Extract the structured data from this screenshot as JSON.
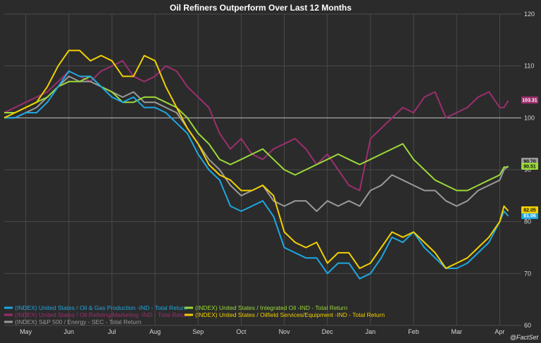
{
  "chart_data": {
    "type": "line",
    "title": "Oil Refiners Outperform Over Last 12 Months",
    "source": "@FactSet",
    "ylim": [
      60,
      120
    ],
    "y_ticks": [
      60,
      70,
      80,
      90,
      100,
      110,
      120
    ],
    "x_ticks": [
      "May",
      "Jun",
      "Jul",
      "Aug",
      "Sep",
      "Oct",
      "Nov",
      "Dec",
      "Jan",
      "Feb",
      "Mar",
      "Apr"
    ],
    "x_positions": [
      0.5,
      1.5,
      2.5,
      3.5,
      4.5,
      5.5,
      6.5,
      7.5,
      8.5,
      9.5,
      10.5,
      11.5
    ],
    "xlim": [
      0,
      12
    ],
    "reference_line": 100,
    "grid": true,
    "legend_position": "bottom-left",
    "series": [
      {
        "name": "(INDEX) United States / Oil & Gas Production -IND - Total Return",
        "color": "#1ea7e1",
        "end_label": "81.06",
        "x": [
          0,
          0.25,
          0.5,
          0.75,
          1.0,
          1.25,
          1.5,
          1.75,
          2.0,
          2.25,
          2.5,
          2.75,
          3.0,
          3.25,
          3.5,
          3.75,
          4.0,
          4.25,
          4.5,
          4.75,
          5.0,
          5.25,
          5.5,
          5.75,
          6.0,
          6.25,
          6.5,
          6.75,
          7.0,
          7.25,
          7.5,
          7.75,
          8.0,
          8.25,
          8.5,
          8.75,
          9.0,
          9.25,
          9.5,
          9.75,
          10.0,
          10.25,
          10.5,
          10.75,
          11.0,
          11.25,
          11.5,
          11.6,
          11.7
        ],
        "values": [
          100,
          100,
          101,
          101,
          103,
          106,
          109,
          108,
          108,
          106,
          104,
          103,
          104,
          102,
          102,
          101,
          99,
          97,
          93,
          90,
          88,
          83,
          82,
          83,
          84,
          81,
          75,
          74,
          73,
          73,
          70,
          72,
          72,
          69,
          70,
          73,
          77,
          76,
          78,
          75,
          73,
          71,
          71,
          72,
          74,
          76,
          80,
          82,
          81.06
        ]
      },
      {
        "name": "(INDEX) United States / Oil Refining/Marketing -IND - Total Return",
        "color": "#9c2e6e",
        "end_label": "103.31",
        "x": [
          0,
          0.25,
          0.5,
          0.75,
          1.0,
          1.25,
          1.5,
          1.75,
          2.0,
          2.25,
          2.5,
          2.75,
          3.0,
          3.25,
          3.5,
          3.75,
          4.0,
          4.25,
          4.5,
          4.75,
          5.0,
          5.25,
          5.5,
          5.75,
          6.0,
          6.25,
          6.5,
          6.75,
          7.0,
          7.25,
          7.5,
          7.75,
          8.0,
          8.25,
          8.5,
          8.75,
          9.0,
          9.25,
          9.5,
          9.75,
          10.0,
          10.25,
          10.5,
          10.75,
          11.0,
          11.25,
          11.5,
          11.6,
          11.7
        ],
        "values": [
          101,
          102,
          103,
          104,
          105,
          107,
          109,
          108,
          107,
          109,
          110,
          111,
          108,
          107,
          108,
          110,
          109,
          106,
          104,
          102,
          97,
          94,
          96,
          93,
          92,
          94,
          95,
          96,
          94,
          91,
          93,
          90,
          87,
          86,
          96,
          98,
          100,
          102,
          101,
          104,
          105,
          100,
          101,
          102,
          104,
          105,
          102,
          102,
          103.31
        ]
      },
      {
        "name": "(INDEX) S&P 500 / Energy - SEC - Total Return",
        "color": "#9a9a9a",
        "end_label": "90.70",
        "x": [
          0,
          0.25,
          0.5,
          0.75,
          1.0,
          1.25,
          1.5,
          1.75,
          2.0,
          2.25,
          2.5,
          2.75,
          3.0,
          3.25,
          3.5,
          3.75,
          4.0,
          4.25,
          4.5,
          4.75,
          5.0,
          5.25,
          5.5,
          5.75,
          6.0,
          6.25,
          6.5,
          6.75,
          7.0,
          7.25,
          7.5,
          7.75,
          8.0,
          8.25,
          8.5,
          8.75,
          9.0,
          9.25,
          9.5,
          9.75,
          10.0,
          10.25,
          10.5,
          10.75,
          11.0,
          11.25,
          11.5,
          11.6,
          11.7
        ],
        "values": [
          100,
          100,
          101,
          102,
          104,
          106,
          108,
          107,
          107,
          106,
          105,
          104,
          105,
          103,
          103,
          102,
          101,
          98,
          95,
          92,
          90,
          87,
          85,
          86,
          87,
          84,
          83,
          84,
          84,
          82,
          84,
          83,
          84,
          83,
          86,
          87,
          89,
          88,
          87,
          86,
          86,
          84,
          83,
          84,
          86,
          87,
          88,
          90,
          90.7
        ]
      },
      {
        "name": "(INDEX) United States / Integrated Oil -IND - Total Return",
        "color": "#9bd93a",
        "end_label": "90.51",
        "x": [
          0,
          0.25,
          0.5,
          0.75,
          1.0,
          1.25,
          1.5,
          1.75,
          2.0,
          2.25,
          2.5,
          2.75,
          3.0,
          3.25,
          3.5,
          3.75,
          4.0,
          4.25,
          4.5,
          4.75,
          5.0,
          5.25,
          5.5,
          5.75,
          6.0,
          6.25,
          6.5,
          6.75,
          7.0,
          7.25,
          7.5,
          7.75,
          8.0,
          8.25,
          8.5,
          8.75,
          9.0,
          9.25,
          9.5,
          9.75,
          10.0,
          10.25,
          10.5,
          10.75,
          11.0,
          11.25,
          11.5,
          11.6,
          11.7
        ],
        "values": [
          101,
          101,
          102,
          103,
          104,
          106,
          107,
          107,
          108,
          106,
          105,
          103,
          103,
          104,
          104,
          103,
          102,
          100,
          97,
          95,
          92,
          91,
          92,
          93,
          94,
          92,
          90,
          89,
          90,
          91,
          92,
          93,
          92,
          91,
          92,
          93,
          94,
          95,
          92,
          90,
          88,
          87,
          86,
          86,
          87,
          88,
          89,
          90.5,
          90.51
        ]
      },
      {
        "name": "(INDEX) United States / Oilfield Services/Equipment -IND - Total Return",
        "color": "#f2d000",
        "end_label": "82.05",
        "x": [
          0,
          0.25,
          0.5,
          0.75,
          1.0,
          1.25,
          1.5,
          1.75,
          2.0,
          2.25,
          2.5,
          2.75,
          3.0,
          3.25,
          3.5,
          3.75,
          4.0,
          4.25,
          4.5,
          4.75,
          5.0,
          5.25,
          5.5,
          5.75,
          6.0,
          6.25,
          6.5,
          6.75,
          7.0,
          7.25,
          7.5,
          7.75,
          8.0,
          8.25,
          8.5,
          8.75,
          9.0,
          9.25,
          9.5,
          9.75,
          10.0,
          10.25,
          10.5,
          10.75,
          11.0,
          11.25,
          11.5,
          11.6,
          11.7
        ],
        "values": [
          100,
          101,
          102,
          103,
          106,
          110,
          113,
          113,
          111,
          112,
          111,
          108,
          108,
          112,
          111,
          106,
          102,
          98,
          95,
          91,
          89,
          88,
          86,
          86,
          87,
          85,
          78,
          76,
          75,
          76,
          72,
          74,
          74,
          71,
          72,
          75,
          78,
          77,
          78,
          76,
          74,
          71,
          72,
          73,
          75,
          77,
          80,
          83,
          82.05
        ]
      }
    ]
  }
}
